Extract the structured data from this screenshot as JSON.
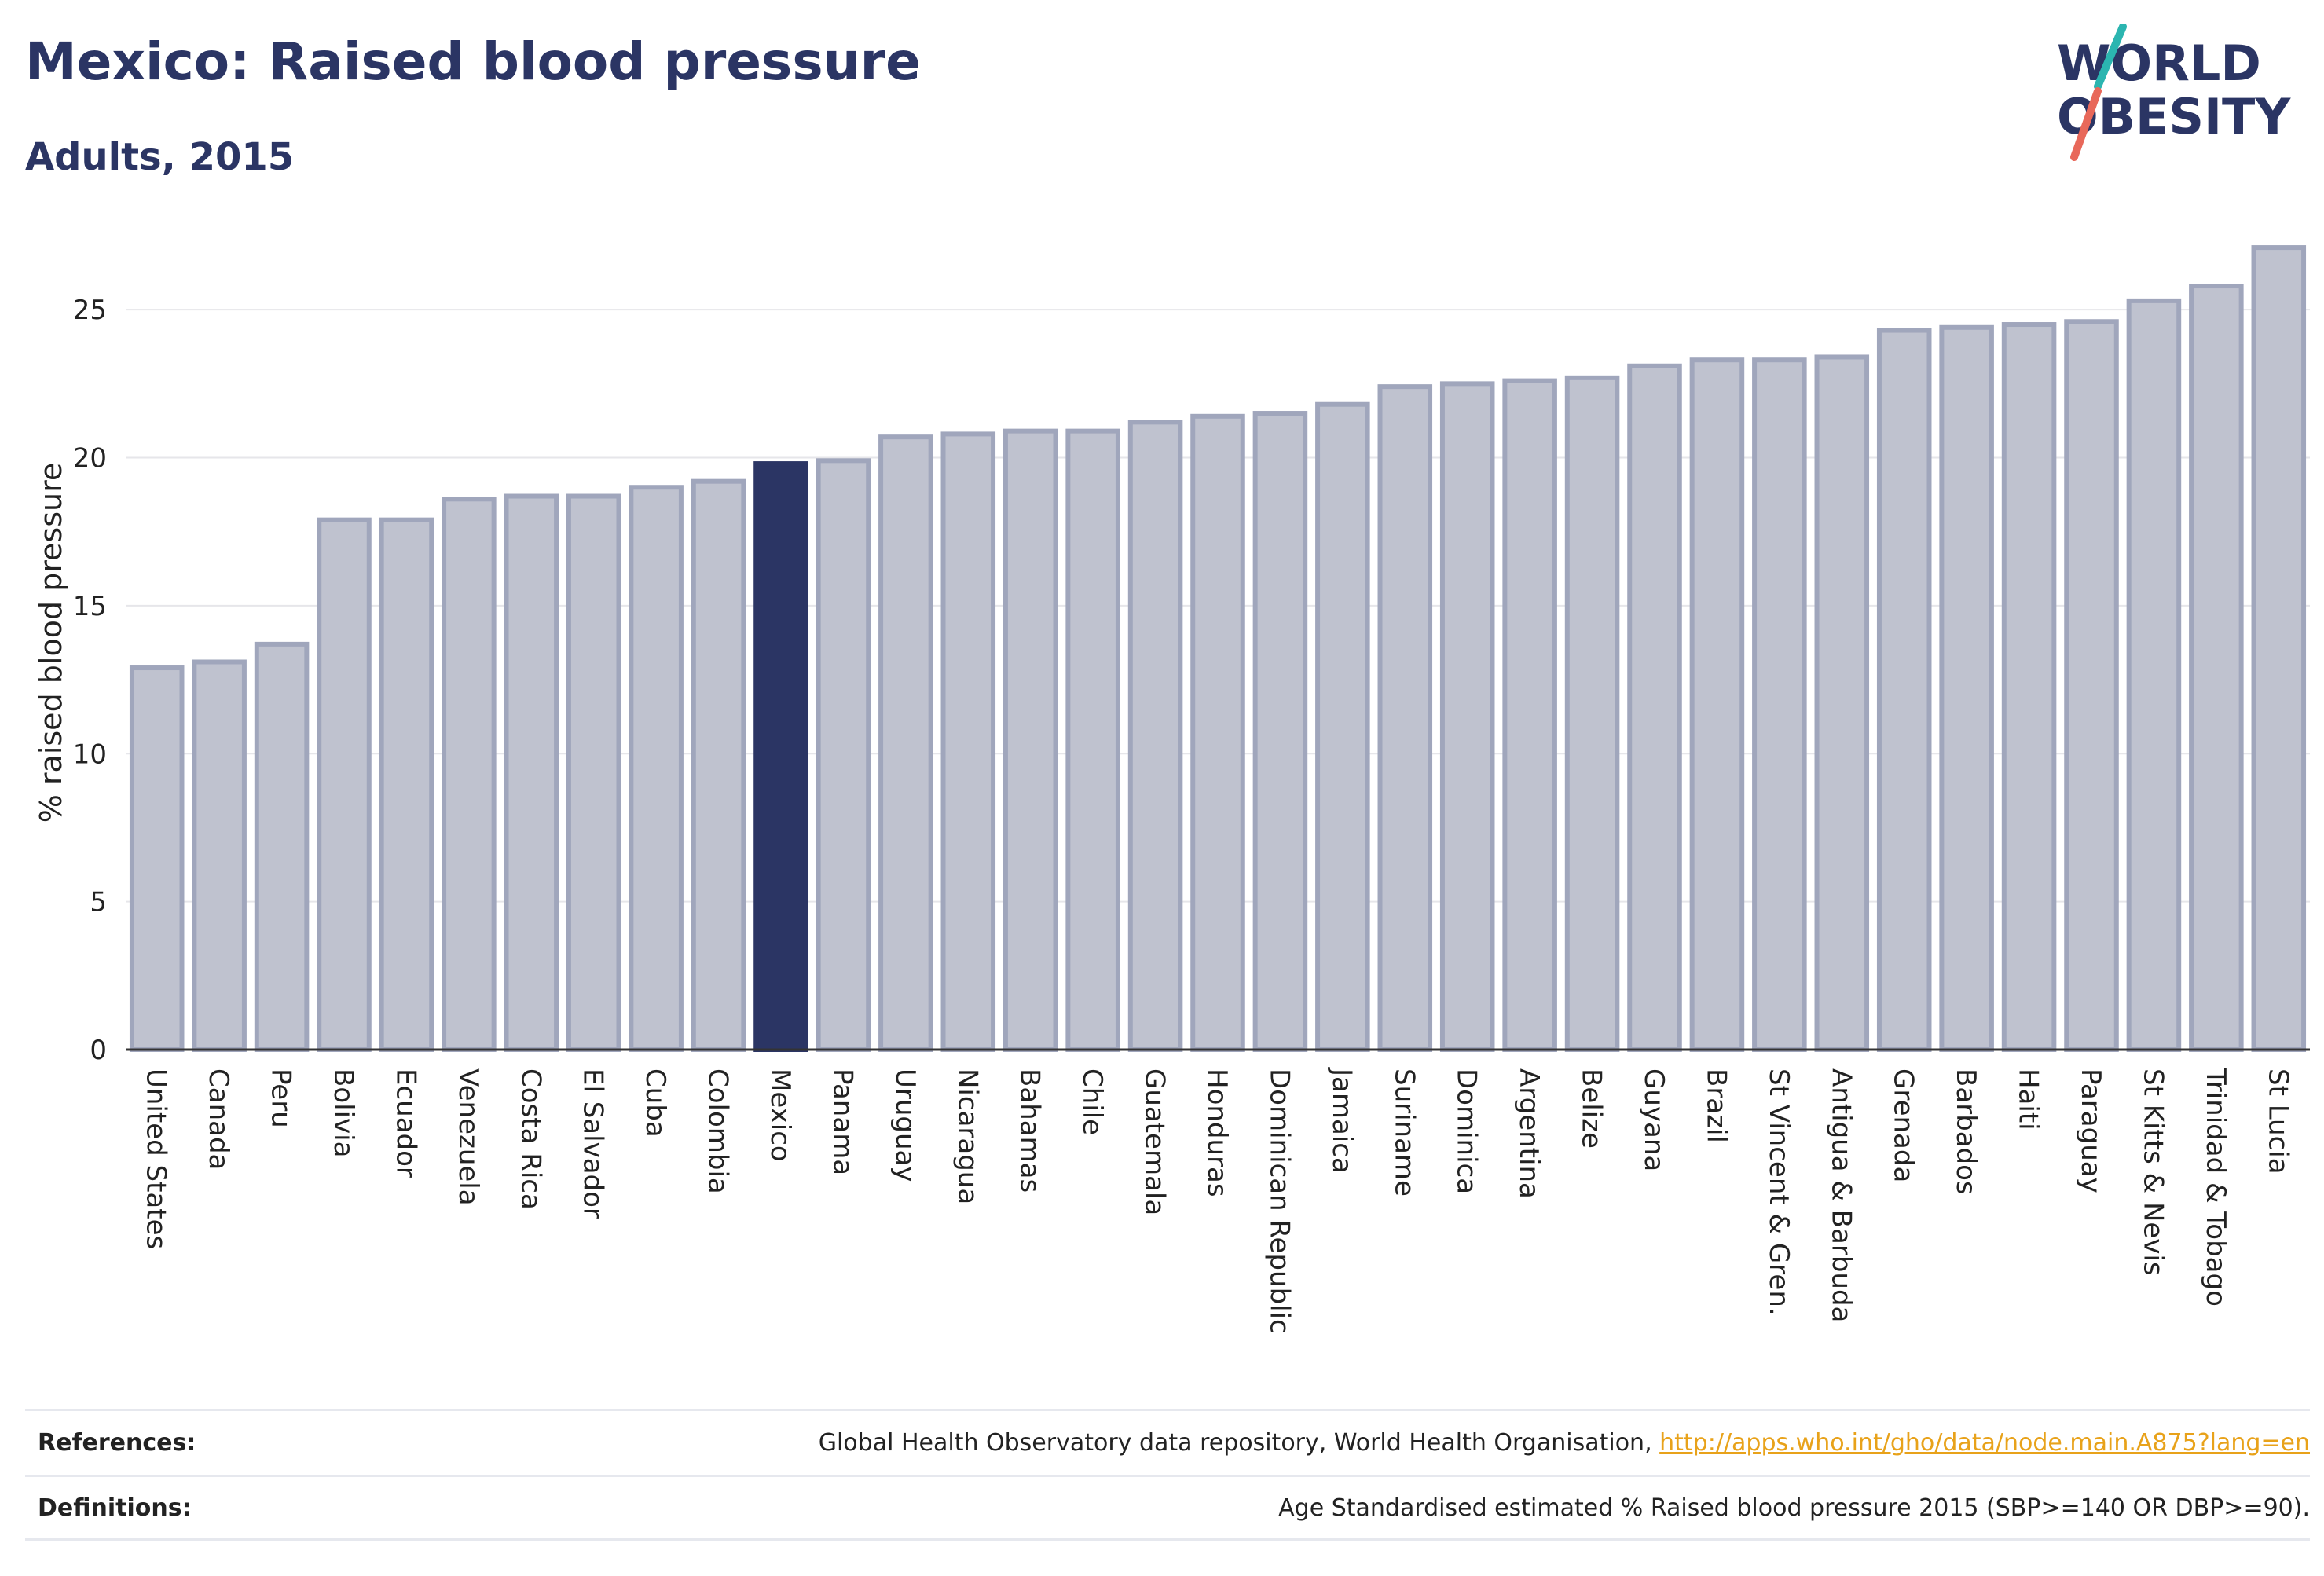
{
  "title": "Mexico: Raised blood pressure",
  "subtitle": "Adults, 2015",
  "logo": {
    "line1": "WORLD",
    "line2": "OBESITY"
  },
  "colors": {
    "highlight": "#2b3564",
    "bar_fill": "#bfc2cf",
    "bar_stroke": "#a0a6bc",
    "title": "#2b3564",
    "link": "#e8a21a"
  },
  "chart_data": {
    "type": "bar",
    "ylabel": "% raised blood pressure",
    "ylim": [
      0,
      27.5
    ],
    "yticks": [
      0,
      5,
      10,
      15,
      20,
      25
    ],
    "grid": true,
    "highlight": "Mexico",
    "categories": [
      "United States",
      "Canada",
      "Peru",
      "Bolivia",
      "Ecuador",
      "Venezuela",
      "Costa Rica",
      "El Salvador",
      "Cuba",
      "Colombia",
      "Mexico",
      "Panama",
      "Uruguay",
      "Nicaragua",
      "Bahamas",
      "Chile",
      "Guatemala",
      "Honduras",
      "Dominican Republic",
      "Jamaica",
      "Suriname",
      "Dominica",
      "Argentina",
      "Belize",
      "Guyana",
      "Brazil",
      "St Vincent & Gren.",
      "Antigua & Barbuda",
      "Grenada",
      "Barbados",
      "Haiti",
      "Paraguay",
      "St Kitts & Nevis",
      "Trinidad & Tobago",
      "St Lucia"
    ],
    "values": [
      12.9,
      13.1,
      13.7,
      17.9,
      17.9,
      18.6,
      18.7,
      18.7,
      19.0,
      19.2,
      19.8,
      19.9,
      20.7,
      20.8,
      20.9,
      20.9,
      21.2,
      21.4,
      21.5,
      21.8,
      22.4,
      22.5,
      22.6,
      22.7,
      23.1,
      23.3,
      23.3,
      23.4,
      24.3,
      24.4,
      24.5,
      24.6,
      25.3,
      25.8,
      27.1
    ]
  },
  "footer": {
    "references_label": "References:",
    "references_text": "Global Health Observatory data repository, World Health Organisation, ",
    "references_link": "http://apps.who.int/gho/data/node.main.A875?lang=en",
    "definitions_label": "Definitions:",
    "definitions_text": "Age Standardised estimated % Raised blood pressure 2015 (SBP>=140 OR DBP>=90)."
  }
}
